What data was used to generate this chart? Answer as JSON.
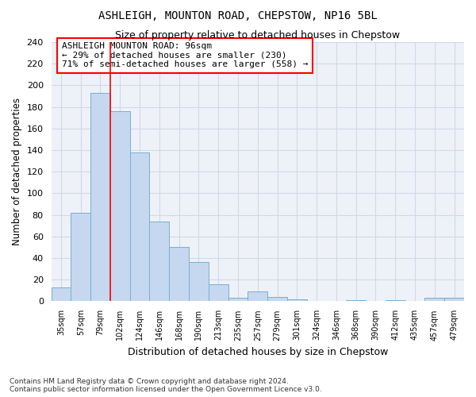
{
  "title": "ASHLEIGH, MOUNTON ROAD, CHEPSTOW, NP16 5BL",
  "subtitle": "Size of property relative to detached houses in Chepstow",
  "xlabel": "Distribution of detached houses by size in Chepstow",
  "ylabel": "Number of detached properties",
  "categories": [
    "35sqm",
    "57sqm",
    "79sqm",
    "102sqm",
    "124sqm",
    "146sqm",
    "168sqm",
    "190sqm",
    "213sqm",
    "235sqm",
    "257sqm",
    "279sqm",
    "301sqm",
    "324sqm",
    "346sqm",
    "368sqm",
    "390sqm",
    "412sqm",
    "435sqm",
    "457sqm",
    "479sqm"
  ],
  "values": [
    13,
    82,
    193,
    176,
    138,
    74,
    50,
    36,
    16,
    3,
    9,
    4,
    2,
    0,
    0,
    1,
    0,
    1,
    0,
    3,
    3
  ],
  "bar_color": "#c5d8ef",
  "bar_edge_color": "#7aadd4",
  "grid_color": "#d0d8e8",
  "background_color": "#eef2f8",
  "red_line_x": 2.5,
  "annotation_line1": "ASHLEIGH MOUNTON ROAD: 96sqm",
  "annotation_line2": "← 29% of detached houses are smaller (230)",
  "annotation_line3": "71% of semi-detached houses are larger (558) →",
  "ylim": [
    0,
    240
  ],
  "yticks": [
    0,
    20,
    40,
    60,
    80,
    100,
    120,
    140,
    160,
    180,
    200,
    220,
    240
  ],
  "footer1": "Contains HM Land Registry data © Crown copyright and database right 2024.",
  "footer2": "Contains public sector information licensed under the Open Government Licence v3.0."
}
